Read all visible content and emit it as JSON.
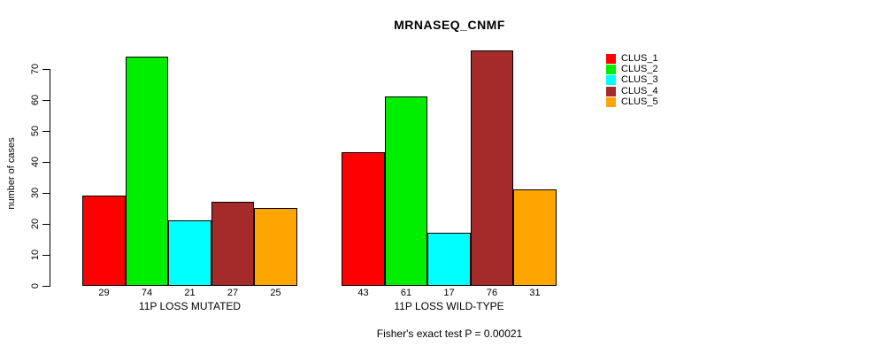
{
  "chart_data": {
    "type": "bar",
    "title": "MRNASEQ_CNMF",
    "ylabel": "number of cases",
    "ylim": [
      0,
      70
    ],
    "yticks": [
      0,
      10,
      20,
      30,
      40,
      50,
      60,
      70
    ],
    "grid": false,
    "legend_position": "right",
    "series": [
      {
        "name": "CLUS_1",
        "color": "#FF0000"
      },
      {
        "name": "CLUS_2",
        "color": "#00EE00"
      },
      {
        "name": "CLUS_3",
        "color": "#00FFFF"
      },
      {
        "name": "CLUS_4",
        "color": "#A52A2A"
      },
      {
        "name": "CLUS_5",
        "color": "#FFA500"
      }
    ],
    "groups": [
      {
        "label": "11P LOSS MUTATED",
        "values": [
          29,
          74,
          21,
          27,
          25
        ]
      },
      {
        "label": "11P LOSS WILD-TYPE",
        "values": [
          43,
          61,
          17,
          76,
          31
        ]
      }
    ],
    "bar_value_labels": [
      [
        29,
        74,
        21,
        27,
        25
      ],
      [
        43,
        61,
        17,
        76,
        31
      ]
    ],
    "annotation": "Fisher's exact test P = 0.00021"
  }
}
